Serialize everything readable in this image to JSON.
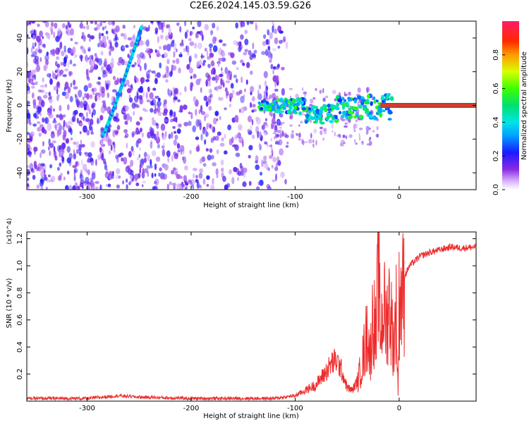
{
  "figure_title": "C2E6.2024.145.03.59.G26",
  "colors": {
    "snr_line": "#ee2c2c",
    "track": "#ff2a2a",
    "axis": "#000000"
  },
  "chart_data": [
    {
      "type": "heatmap",
      "title": "C2E6.2024.145.03.59.G26",
      "xlabel": "Height of straight line (km)",
      "ylabel": "Frequency (Hz)",
      "xlim": [
        -358,
        74
      ],
      "ylim": [
        -50,
        50
      ],
      "x_ticks": [
        -300,
        -200,
        -100,
        0
      ],
      "y_ticks": [
        -40,
        -20,
        0,
        20,
        40
      ],
      "colorbar": {
        "label": "Normalized spectral amplitude",
        "range": [
          0,
          1
        ],
        "ticks": [
          "0.0",
          "0.2",
          "0.4",
          "0.6",
          "0.8"
        ],
        "tick_values": [
          0,
          0.2,
          0.4,
          0.6,
          0.8
        ],
        "colormap": "rainbow (white→violet→blue→cyan→green→yellow→red→magenta)"
      },
      "features": [
        {
          "name": "dispersed tone",
          "x_range": [
            -285,
            -248
          ],
          "freq_range": [
            -18,
            46
          ],
          "amplitude": 0.35
        },
        {
          "name": "broad noise band",
          "x_range": [
            -358,
            -108
          ],
          "freq_range": [
            -50,
            50
          ],
          "amplitude": 0.08
        },
        {
          "name": "direct carrier",
          "x_range": [
            -135,
            74
          ],
          "freq": 0,
          "amplitude_range": [
            0.3,
            1.0
          ]
        }
      ]
    },
    {
      "type": "line",
      "xlabel": "Height of straight line (km)",
      "ylabel": "SNR (10 * v/v)",
      "y_multiplier": "(x10^4)",
      "xlim": [
        -358,
        74
      ],
      "ylim": [
        0,
        1.25
      ],
      "x_ticks": [
        -300,
        -200,
        -100,
        0
      ],
      "y_ticks": [
        0.2,
        0.4,
        0.6,
        0.8,
        1.0,
        1.2
      ],
      "x": [
        -358,
        -300,
        -270,
        -250,
        -200,
        -120,
        -100,
        -80,
        -70,
        -65,
        -60,
        -55,
        -50,
        -45,
        -40,
        -35,
        -30,
        -28,
        -25,
        -22,
        -20,
        -18,
        -15,
        -12,
        -10,
        -8,
        -5,
        -3,
        -1,
        0,
        5,
        10,
        20,
        30,
        40,
        50,
        60,
        74
      ],
      "values": [
        0.02,
        0.02,
        0.04,
        0.03,
        0.02,
        0.02,
        0.04,
        0.12,
        0.22,
        0.28,
        0.3,
        0.22,
        0.1,
        0.08,
        0.15,
        0.35,
        0.6,
        0.35,
        0.75,
        0.5,
        1.2,
        0.55,
        0.8,
        0.62,
        0.85,
        0.7,
        0.45,
        0.8,
        0.05,
        0.85,
        0.92,
        1.0,
        1.07,
        1.1,
        1.12,
        1.14,
        1.13,
        1.14
      ]
    }
  ]
}
